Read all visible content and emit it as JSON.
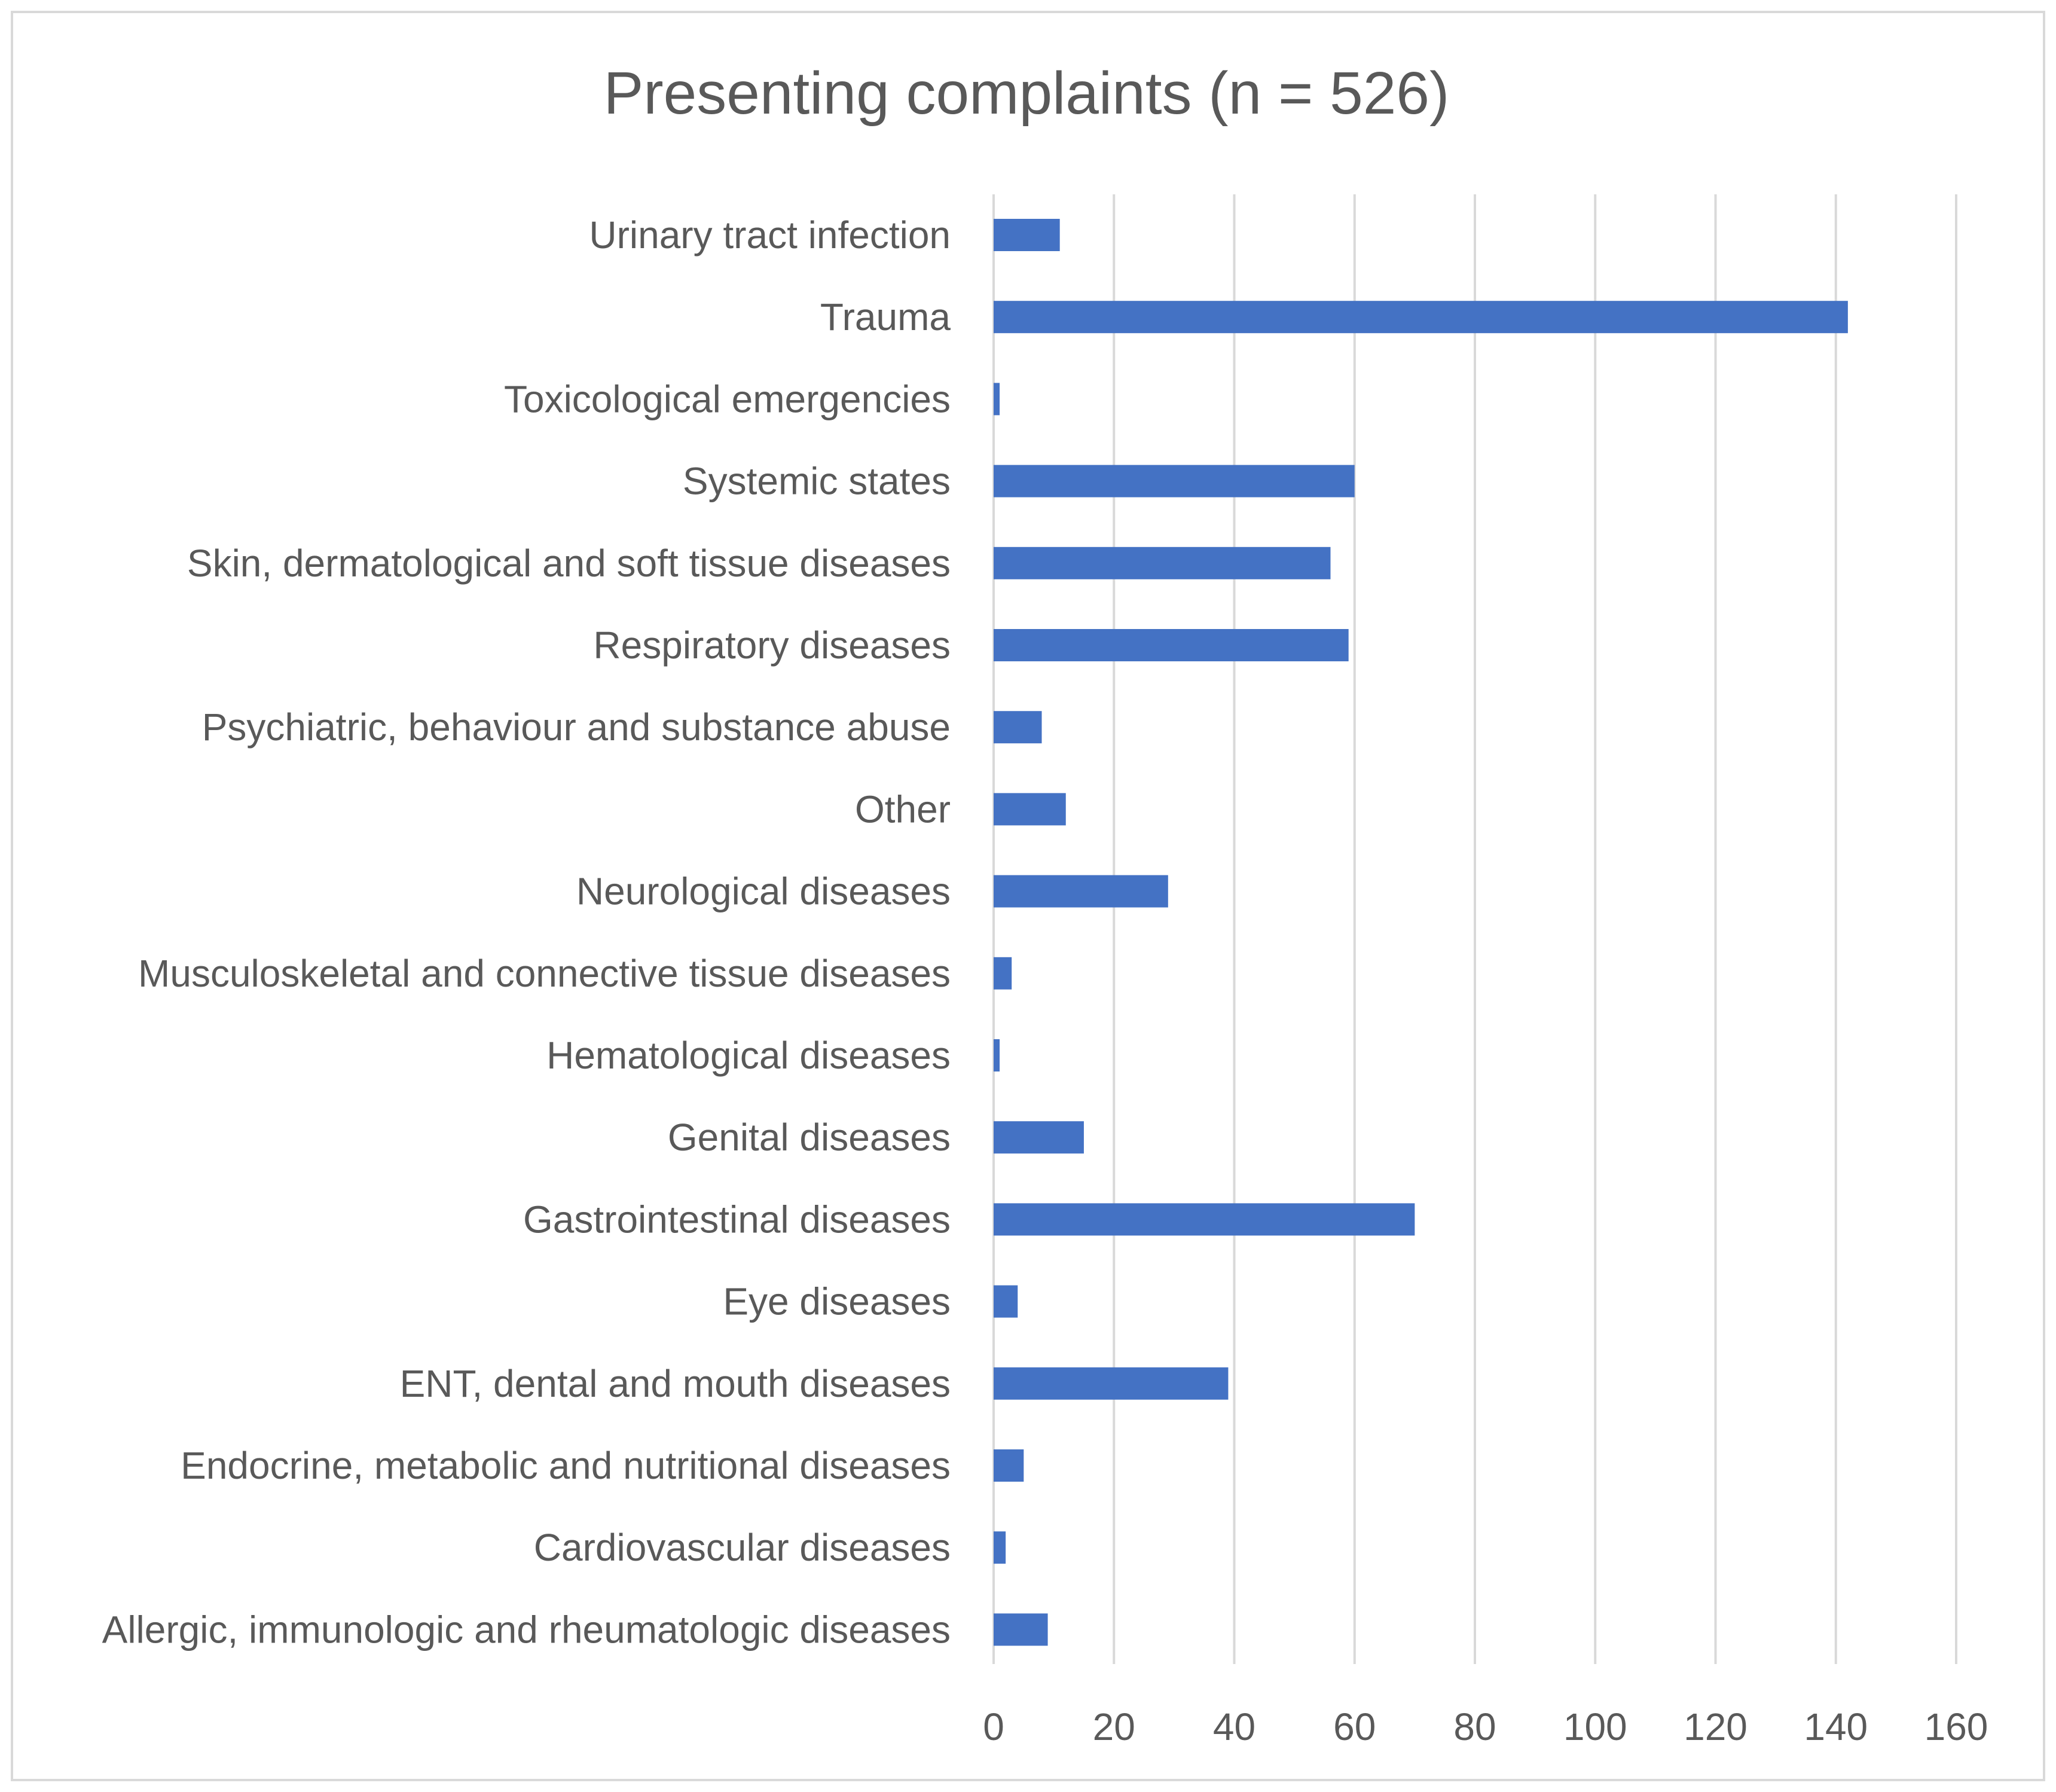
{
  "chart_data": {
    "type": "bar",
    "orientation": "horizontal",
    "title": "Presenting complaints (n = 526)",
    "xlabel": "",
    "ylabel": "",
    "xlim": [
      0,
      160
    ],
    "ticks": [
      0,
      20,
      40,
      60,
      80,
      100,
      120,
      140,
      160
    ],
    "tick_labels": [
      "0",
      "20",
      "40",
      "60",
      "80",
      "100",
      "120",
      "140",
      "160"
    ],
    "grid": true,
    "legend": "none",
    "bar_color": "#4472c4",
    "categories": [
      "Urinary tract infection",
      "Trauma",
      "Toxicological emergencies",
      "Systemic states",
      "Skin, dermatological and soft tissue diseases",
      "Respiratory diseases",
      "Psychiatric, behaviour and substance abuse",
      "Other",
      "Neurological diseases",
      "Musculoskeletal and connective tissue diseases",
      "Hematological diseases",
      "Genital diseases",
      "Gastrointestinal diseases",
      "Eye diseases",
      "ENT, dental and mouth diseases",
      "Endocrine, metabolic and nutritional diseases",
      "Cardiovascular diseases",
      "Allergic, immunologic and rheumatologic diseases"
    ],
    "values": [
      11,
      142,
      1,
      60,
      56,
      59,
      8,
      12,
      29,
      3,
      1,
      15,
      70,
      4,
      39,
      5,
      2,
      9
    ]
  }
}
